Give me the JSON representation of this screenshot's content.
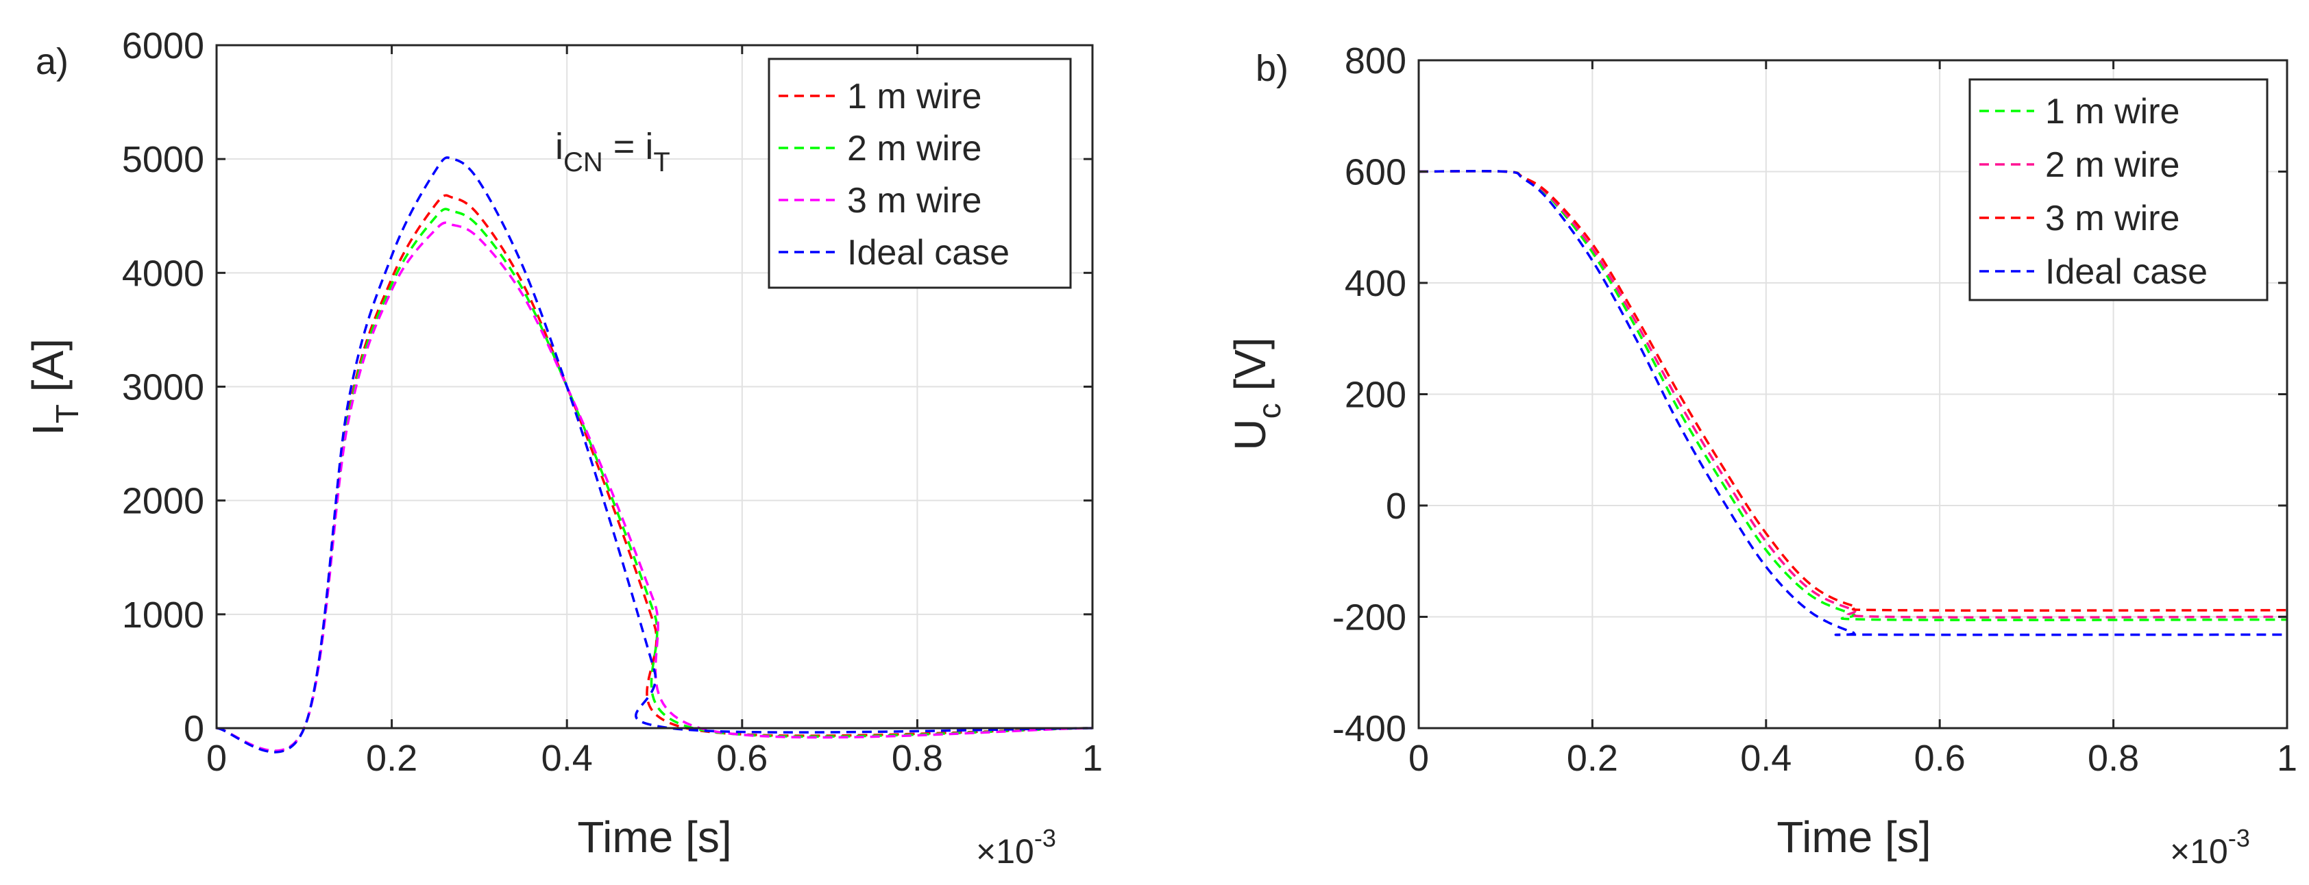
{
  "chart_data": [
    {
      "type": "line",
      "panel_label": "a)",
      "xlabel": "Time [s]",
      "ylabel_main": "I",
      "ylabel_sub": "T",
      "ylabel_rest": " [A]",
      "x_exponent_base": "×10",
      "x_exponent_power": "-3",
      "xlim": [
        0,
        1
      ],
      "ylim": [
        0,
        6000
      ],
      "xticks": [
        "0",
        "0.2",
        "0.4",
        "0.6",
        "0.8",
        "1"
      ],
      "yticks": [
        "0",
        "1000",
        "2000",
        "3000",
        "4000",
        "5000",
        "6000"
      ],
      "grid": true,
      "legend_position": "top-right",
      "annotation": {
        "i1": "i",
        "s1": "CN",
        "mid": " = i",
        "s2": "T"
      },
      "series": [
        {
          "name": "1 m wire",
          "color": "#ff0000",
          "x": [
            0,
            0.1,
            0.15,
            0.2,
            0.25,
            0.27,
            0.3,
            0.35,
            0.4,
            0.45,
            0.5,
            0.536,
            1
          ],
          "y": [
            0,
            0,
            2750,
            3950,
            4600,
            4660,
            4500,
            3900,
            3000,
            2000,
            900,
            0,
            0
          ]
        },
        {
          "name": "2 m wire",
          "color": "#00ff00",
          "x": [
            0,
            0.1,
            0.15,
            0.2,
            0.25,
            0.27,
            0.3,
            0.35,
            0.4,
            0.45,
            0.5,
            0.544,
            1
          ],
          "y": [
            0,
            0,
            2720,
            3900,
            4490,
            4540,
            4400,
            3850,
            3000,
            2050,
            1000,
            0,
            0
          ]
        },
        {
          "name": "3 m wire",
          "color": "#ff00ff",
          "x": [
            0,
            0.1,
            0.15,
            0.2,
            0.25,
            0.27,
            0.3,
            0.35,
            0.4,
            0.45,
            0.5,
            0.552,
            1
          ],
          "y": [
            0,
            0,
            2680,
            3850,
            4380,
            4420,
            4300,
            3800,
            3000,
            2100,
            1100,
            0,
            0
          ]
        },
        {
          "name": "Ideal case",
          "color": "#0000ff",
          "x": [
            0,
            0.1,
            0.15,
            0.2,
            0.25,
            0.27,
            0.3,
            0.35,
            0.4,
            0.45,
            0.5,
            0.518,
            1
          ],
          "y": [
            0,
            0,
            2850,
            4150,
            4900,
            5000,
            4800,
            4050,
            3000,
            1800,
            500,
            0,
            0
          ]
        }
      ]
    },
    {
      "type": "line",
      "panel_label": "b)",
      "xlabel": "Time [s]",
      "ylabel_main": "U",
      "ylabel_sub": "c",
      "ylabel_rest": " [V]",
      "x_exponent_base": "×10",
      "x_exponent_power": "-3",
      "xlim": [
        0,
        1
      ],
      "ylim": [
        -400,
        800
      ],
      "xticks": [
        "0",
        "0.2",
        "0.4",
        "0.6",
        "0.8",
        "1"
      ],
      "yticks": [
        "-400",
        "-200",
        "0",
        "200",
        "400",
        "600",
        "800"
      ],
      "grid": true,
      "legend_position": "top-right",
      "series": [
        {
          "name": "1 m wire",
          "color": "#00ff00",
          "x": [
            0,
            0.1,
            0.12,
            0.15,
            0.2,
            0.25,
            0.3,
            0.35,
            0.4,
            0.45,
            0.5,
            0.53,
            1
          ],
          "y": [
            600,
            600,
            590,
            555,
            455,
            320,
            170,
            40,
            -80,
            -160,
            -195,
            -205,
            -205
          ]
        },
        {
          "name": "2 m wire",
          "color": "#ff1493",
          "x": [
            0,
            0.1,
            0.12,
            0.15,
            0.2,
            0.25,
            0.3,
            0.35,
            0.4,
            0.45,
            0.5,
            0.54,
            1
          ],
          "y": [
            600,
            600,
            590,
            557,
            462,
            330,
            185,
            55,
            -65,
            -150,
            -187,
            -200,
            -200
          ]
        },
        {
          "name": "3 m wire",
          "color": "#ff0000",
          "x": [
            0,
            0.1,
            0.12,
            0.15,
            0.2,
            0.25,
            0.3,
            0.35,
            0.4,
            0.45,
            0.5,
            0.55,
            1
          ],
          "y": [
            600,
            600,
            590,
            560,
            470,
            340,
            200,
            70,
            -50,
            -140,
            -180,
            -188,
            -188
          ]
        },
        {
          "name": "Ideal case",
          "color": "#0000ff",
          "x": [
            0,
            0.1,
            0.12,
            0.15,
            0.2,
            0.25,
            0.3,
            0.35,
            0.4,
            0.45,
            0.5,
            0.52,
            1
          ],
          "y": [
            600,
            600,
            588,
            548,
            440,
            300,
            145,
            10,
            -110,
            -190,
            -228,
            -232,
            -232
          ]
        }
      ]
    }
  ]
}
